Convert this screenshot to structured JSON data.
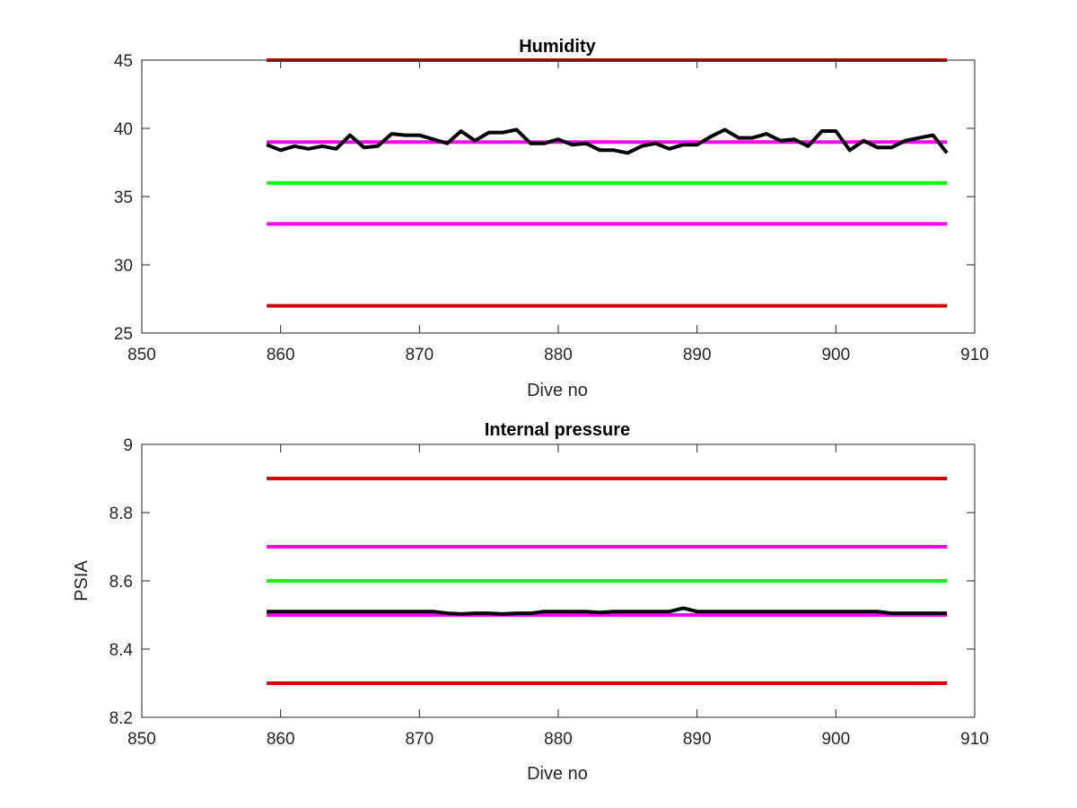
{
  "chart_data": [
    {
      "type": "line",
      "title": "Humidity",
      "xlabel": "Dive no",
      "ylabel": "",
      "xlim": [
        850,
        910
      ],
      "ylim": [
        25,
        45
      ],
      "xticks": [
        "850",
        "860",
        "870",
        "880",
        "890",
        "900",
        "910"
      ],
      "yticks": [
        "25",
        "30",
        "35",
        "40",
        "45"
      ],
      "grid": false,
      "colors": {
        "limit_red": "#d40000",
        "limit_magenta": "#ff00ff",
        "nominal_green": "#00ff00",
        "data_black": "#000000"
      },
      "series": [
        {
          "color": "#d40000",
          "x": [
            859,
            908
          ],
          "values": [
            45,
            45
          ]
        },
        {
          "color": "#ff00ff",
          "x": [
            859,
            908
          ],
          "values": [
            39,
            39
          ]
        },
        {
          "color": "#00ff00",
          "x": [
            859,
            908
          ],
          "values": [
            36,
            36
          ]
        },
        {
          "color": "#ff00ff",
          "x": [
            859,
            908
          ],
          "values": [
            33,
            33
          ]
        },
        {
          "color": "#d40000",
          "x": [
            859,
            908
          ],
          "values": [
            27,
            27
          ]
        },
        {
          "color": "#000000",
          "x": [
            859,
            860,
            861,
            862,
            863,
            864,
            865,
            866,
            867,
            868,
            869,
            870,
            871,
            872,
            873,
            874,
            875,
            876,
            877,
            878,
            879,
            880,
            881,
            882,
            883,
            884,
            885,
            886,
            887,
            888,
            889,
            890,
            891,
            892,
            893,
            894,
            895,
            896,
            897,
            898,
            899,
            900,
            901,
            902,
            903,
            904,
            905,
            906,
            907,
            908
          ],
          "values": [
            38.8,
            38.4,
            38.7,
            38.5,
            38.7,
            38.5,
            39.5,
            38.6,
            38.7,
            39.6,
            39.5,
            39.5,
            39.2,
            38.9,
            39.8,
            39.1,
            39.7,
            39.7,
            39.9,
            38.9,
            38.9,
            39.2,
            38.8,
            38.9,
            38.4,
            38.4,
            38.2,
            38.7,
            38.9,
            38.5,
            38.8,
            38.8,
            39.4,
            39.9,
            39.3,
            39.3,
            39.6,
            39.1,
            39.2,
            38.7,
            39.8,
            39.8,
            38.4,
            39.1,
            38.6,
            38.6,
            39.1,
            39.3,
            39.5,
            38.2
          ]
        }
      ]
    },
    {
      "type": "line",
      "title": "Internal pressure",
      "xlabel": "Dive no",
      "ylabel": "PSIA",
      "xlim": [
        850,
        910
      ],
      "ylim": [
        8.2,
        9
      ],
      "xticks": [
        "850",
        "860",
        "870",
        "880",
        "890",
        "900",
        "910"
      ],
      "yticks": [
        "8.2",
        "8.4",
        "8.6",
        "8.8",
        "9"
      ],
      "grid": false,
      "series": [
        {
          "color": "#d40000",
          "x": [
            859,
            908
          ],
          "values": [
            8.9,
            8.9
          ]
        },
        {
          "color": "#ff00ff",
          "x": [
            859,
            908
          ],
          "values": [
            8.7,
            8.7
          ]
        },
        {
          "color": "#00ff00",
          "x": [
            859,
            908
          ],
          "values": [
            8.6,
            8.6
          ]
        },
        {
          "color": "#ff00ff",
          "x": [
            859,
            908
          ],
          "values": [
            8.5,
            8.5
          ]
        },
        {
          "color": "#d40000",
          "x": [
            859,
            908
          ],
          "values": [
            8.3,
            8.3
          ]
        },
        {
          "color": "#000000",
          "x": [
            859,
            860,
            861,
            862,
            863,
            864,
            865,
            866,
            867,
            868,
            869,
            870,
            871,
            872,
            873,
            874,
            875,
            876,
            877,
            878,
            879,
            880,
            881,
            882,
            883,
            884,
            885,
            886,
            887,
            888,
            889,
            890,
            891,
            892,
            893,
            894,
            895,
            896,
            897,
            898,
            899,
            900,
            901,
            902,
            903,
            904,
            905,
            906,
            907,
            908
          ],
          "values": [
            8.51,
            8.51,
            8.51,
            8.51,
            8.51,
            8.51,
            8.51,
            8.51,
            8.51,
            8.51,
            8.51,
            8.51,
            8.51,
            8.505,
            8.503,
            8.505,
            8.505,
            8.503,
            8.505,
            8.505,
            8.51,
            8.51,
            8.51,
            8.51,
            8.507,
            8.51,
            8.51,
            8.51,
            8.51,
            8.51,
            8.52,
            8.51,
            8.51,
            8.51,
            8.51,
            8.51,
            8.51,
            8.51,
            8.51,
            8.51,
            8.51,
            8.51,
            8.51,
            8.51,
            8.51,
            8.505,
            8.505,
            8.505,
            8.505,
            8.505
          ]
        }
      ]
    }
  ]
}
